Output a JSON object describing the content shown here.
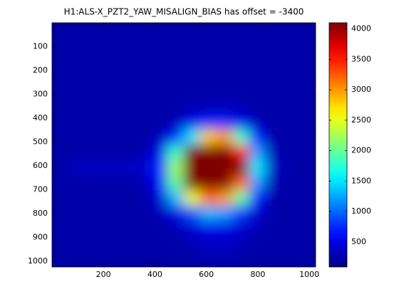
{
  "chart_data": {
    "type": "heatmap",
    "title": "H1:ALS-X_PZT2_YAW_MISALIGN_BIAS has offset = -3400",
    "colormap": "jet",
    "xlim": [
      0.5,
      1024.5
    ],
    "ylim": [
      0.5,
      1024.5
    ],
    "y_reversed": true,
    "xticks": [
      200,
      400,
      600,
      800,
      1000
    ],
    "yticks": [
      100,
      200,
      300,
      400,
      500,
      600,
      700,
      800,
      900,
      1000
    ],
    "zlim": [
      90,
      4100
    ],
    "colorbar_ticks": [
      500,
      1000,
      1500,
      2000,
      2500,
      3000,
      3500,
      4000
    ],
    "z": [
      [
        250,
        250,
        250,
        250,
        250,
        250,
        250,
        250,
        250,
        250,
        250,
        250,
        250,
        250,
        250,
        250
      ],
      [
        250,
        250,
        250,
        250,
        250,
        250,
        250,
        250,
        250,
        250,
        250,
        250,
        250,
        250,
        250,
        250
      ],
      [
        250,
        250,
        250,
        250,
        250,
        250,
        250,
        250,
        250,
        250,
        250,
        250,
        250,
        250,
        250,
        250
      ],
      [
        250,
        250,
        250,
        250,
        250,
        250,
        250,
        250,
        250,
        250,
        250,
        250,
        250,
        250,
        250,
        250
      ],
      [
        250,
        250,
        250,
        250,
        250,
        250,
        250,
        250,
        250,
        250,
        250,
        250,
        250,
        250,
        250,
        250
      ],
      [
        250,
        250,
        250,
        250,
        250,
        250,
        250,
        250,
        300,
        300,
        300,
        300,
        250,
        250,
        250,
        250
      ],
      [
        250,
        250,
        250,
        250,
        250,
        250,
        250,
        300,
        500,
        700,
        700,
        500,
        300,
        250,
        250,
        250
      ],
      [
        250,
        250,
        250,
        250,
        250,
        250,
        300,
        700,
        1500,
        2800,
        3000,
        1800,
        700,
        250,
        250,
        250
      ],
      [
        250,
        250,
        250,
        250,
        250,
        250,
        500,
        1800,
        4100,
        4100,
        4100,
        3500,
        1200,
        300,
        250,
        250
      ],
      [
        250,
        350,
        350,
        350,
        350,
        400,
        700,
        2200,
        4100,
        4100,
        4100,
        4100,
        1500,
        350,
        250,
        250
      ],
      [
        250,
        250,
        250,
        250,
        250,
        300,
        600,
        2000,
        4100,
        4100,
        4100,
        3200,
        1200,
        300,
        250,
        250
      ],
      [
        250,
        250,
        250,
        250,
        250,
        250,
        400,
        1300,
        2500,
        3200,
        3000,
        2000,
        700,
        250,
        250,
        250
      ],
      [
        250,
        250,
        250,
        250,
        250,
        250,
        300,
        500,
        900,
        1300,
        1200,
        800,
        400,
        250,
        250,
        250
      ],
      [
        250,
        250,
        250,
        250,
        250,
        250,
        250,
        300,
        400,
        500,
        500,
        400,
        300,
        250,
        250,
        250
      ],
      [
        250,
        250,
        250,
        250,
        250,
        250,
        250,
        250,
        300,
        350,
        350,
        300,
        250,
        250,
        250,
        250
      ],
      [
        250,
        250,
        250,
        250,
        250,
        250,
        250,
        250,
        250,
        300,
        300,
        250,
        250,
        250,
        250,
        250
      ]
    ]
  }
}
